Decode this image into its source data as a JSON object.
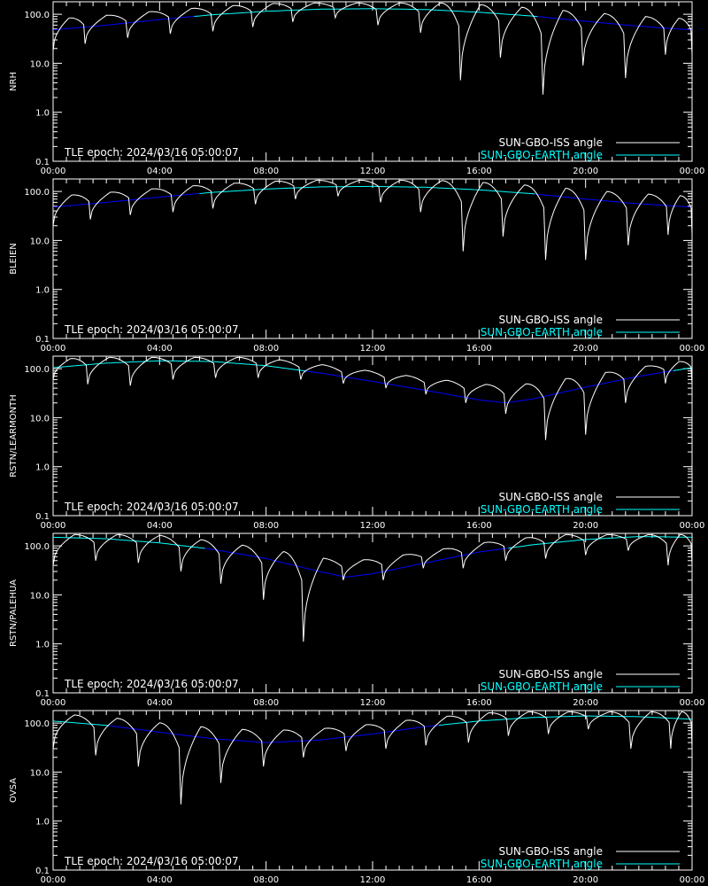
{
  "chart_data": [
    {
      "type": "line",
      "ylabel": "NRH",
      "yscale": "log",
      "xlim": [
        "00:00",
        "24:00"
      ],
      "ylim": [
        0.1,
        180
      ],
      "x_ticks": [
        "00:00",
        "04:00",
        "08:00",
        "12:00",
        "16:00",
        "20:00",
        "00:00"
      ],
      "y_ticks": [
        "0.1",
        "1.0",
        "10.0",
        "100.0"
      ],
      "annotation": "TLE epoch: 2024/03/16 05:00:07",
      "legend": [
        "SUN-GBO-ISS angle",
        "SUN-GBO-EARTH angle"
      ],
      "legend_position": "bottom-right",
      "earth_angle": {
        "x_hours": [
          0,
          2,
          4,
          6,
          8,
          10,
          12,
          14,
          16,
          18,
          20,
          22,
          24
        ],
        "values": [
          48,
          60,
          78,
          98,
          115,
          127,
          130,
          125,
          110,
          92,
          72,
          57,
          48
        ]
      },
      "iss_minima": {
        "x_hours": [
          0.0,
          1.2,
          2.8,
          4.4,
          6.0,
          7.5,
          9.0,
          10.6,
          12.2,
          13.8,
          15.3,
          16.8,
          18.4,
          19.9,
          21.5,
          23.0
        ],
        "values": [
          18,
          25,
          33,
          40,
          45,
          55,
          70,
          85,
          60,
          42,
          4.5,
          13,
          2.3,
          9,
          5,
          15
        ]
      }
    },
    {
      "type": "line",
      "ylabel": "BLEIEN",
      "yscale": "log",
      "xlim": [
        "00:00",
        "24:00"
      ],
      "ylim": [
        0.1,
        180
      ],
      "x_ticks": [
        "00:00",
        "04:00",
        "08:00",
        "12:00",
        "16:00",
        "20:00",
        "00:00"
      ],
      "y_ticks": [
        "0.1",
        "1.0",
        "10.0",
        "100.0"
      ],
      "annotation": "TLE epoch: 2024/03/16 05:00:07",
      "legend": [
        "SUN-GBO-ISS angle",
        "SUN-GBO-EARTH angle"
      ],
      "legend_position": "bottom-right",
      "earth_angle": {
        "x_hours": [
          0,
          2,
          4,
          6,
          8,
          10,
          12,
          14,
          16,
          18,
          20,
          22,
          24
        ],
        "values": [
          48,
          60,
          77,
          96,
          112,
          124,
          127,
          122,
          108,
          90,
          70,
          56,
          48
        ]
      },
      "iss_minima": {
        "x_hours": [
          0.0,
          1.4,
          2.9,
          4.5,
          6.0,
          7.6,
          9.1,
          10.7,
          12.3,
          13.8,
          15.4,
          16.9,
          18.5,
          20.0,
          21.6,
          23.1
        ],
        "values": [
          20,
          27,
          33,
          38,
          45,
          55,
          70,
          80,
          60,
          38,
          6,
          12,
          4,
          4,
          8,
          13
        ]
      }
    },
    {
      "type": "line",
      "ylabel": "RSTN/LEARMONTH",
      "yscale": "log",
      "xlim": [
        "00:00",
        "24:00"
      ],
      "ylim": [
        0.1,
        180
      ],
      "x_ticks": [
        "00:00",
        "04:00",
        "08:00",
        "12:00",
        "16:00",
        "20:00",
        "00:00"
      ],
      "y_ticks": [
        "0.1",
        "1.0",
        "10.0",
        "100.0"
      ],
      "annotation": "TLE epoch: 2024/03/16 05:00:07",
      "legend": [
        "SUN-GBO-ISS angle",
        "SUN-GBO-EARTH angle"
      ],
      "legend_position": "bottom-right",
      "earth_angle": {
        "x_hours": [
          0,
          2,
          4,
          6,
          8,
          10,
          12,
          14,
          16,
          17,
          18,
          20,
          22,
          24
        ],
        "values": [
          105,
          130,
          145,
          140,
          115,
          82,
          55,
          36,
          23,
          20,
          24,
          42,
          70,
          105
        ]
      },
      "iss_minima": {
        "x_hours": [
          0.0,
          1.3,
          2.9,
          4.5,
          6.1,
          7.7,
          9.3,
          10.9,
          12.5,
          14.0,
          15.5,
          17.0,
          18.5,
          20.0,
          21.5,
          23.0
        ],
        "values": [
          60,
          48,
          45,
          60,
          65,
          65,
          60,
          50,
          40,
          30,
          20,
          12,
          3.5,
          4.5,
          20,
          50
        ]
      }
    },
    {
      "type": "line",
      "ylabel": "RSTN/PALEHUA",
      "yscale": "log",
      "xlim": [
        "00:00",
        "24:00"
      ],
      "ylim": [
        0.1,
        180
      ],
      "x_ticks": [
        "00:00",
        "04:00",
        "08:00",
        "12:00",
        "16:00",
        "20:00",
        "00:00"
      ],
      "y_ticks": [
        "0.1",
        "1.0",
        "10.0",
        "100.0"
      ],
      "annotation": "TLE epoch: 2024/03/16 05:00:07",
      "legend": [
        "SUN-GBO-ISS angle",
        "SUN-GBO-EARTH angle"
      ],
      "legend_position": "bottom-right",
      "earth_angle": {
        "x_hours": [
          0,
          2,
          4,
          6,
          8,
          10,
          11,
          12,
          14,
          16,
          18,
          20,
          22,
          24
        ],
        "values": [
          150,
          140,
          115,
          85,
          55,
          30,
          23,
          27,
          45,
          75,
          105,
          135,
          155,
          150
        ]
      },
      "iss_minima": {
        "x_hours": [
          0.0,
          1.6,
          3.2,
          4.8,
          6.3,
          7.9,
          9.4,
          10.9,
          12.4,
          13.9,
          15.4,
          17.0,
          18.5,
          20.0,
          21.6,
          23.1
        ],
        "values": [
          40,
          50,
          45,
          30,
          17,
          8,
          1.1,
          20,
          20,
          35,
          35,
          50,
          55,
          65,
          80,
          40
        ]
      }
    },
    {
      "type": "line",
      "ylabel": "OVSA",
      "yscale": "log",
      "xlim": [
        "00:00",
        "24:00"
      ],
      "ylim": [
        0.1,
        180
      ],
      "x_ticks": [
        "00:00",
        "04:00",
        "08:00",
        "12:00",
        "16:00",
        "20:00",
        "00:00"
      ],
      "y_ticks": [
        "0.1",
        "1.0",
        "10.0",
        "100.0"
      ],
      "annotation": "TLE epoch: 2024/03/16 05:00:07",
      "legend": [
        "SUN-GBO-ISS angle",
        "SUN-GBO-EARTH angle"
      ],
      "legend_position": "bottom-right",
      "earth_angle": {
        "x_hours": [
          0,
          2,
          4,
          6,
          8,
          10,
          12,
          14,
          16,
          18,
          20,
          22,
          24
        ],
        "values": [
          110,
          90,
          65,
          48,
          40,
          45,
          60,
          85,
          110,
          130,
          140,
          135,
          120
        ]
      },
      "iss_minima": {
        "x_hours": [
          0.0,
          1.6,
          3.2,
          4.8,
          6.3,
          7.9,
          9.4,
          11.0,
          12.5,
          14.0,
          15.6,
          17.1,
          18.6,
          20.1,
          21.7,
          23.2
        ],
        "values": [
          30,
          22,
          13,
          2.2,
          6,
          13,
          20,
          27,
          30,
          35,
          40,
          55,
          60,
          75,
          30,
          30
        ]
      }
    }
  ],
  "colors": {
    "background": "#000000",
    "axes": "#ffffff",
    "iss_line": "#ffffff",
    "earth_line_above": "#00ffff",
    "earth_line_below": "#0000ff"
  }
}
